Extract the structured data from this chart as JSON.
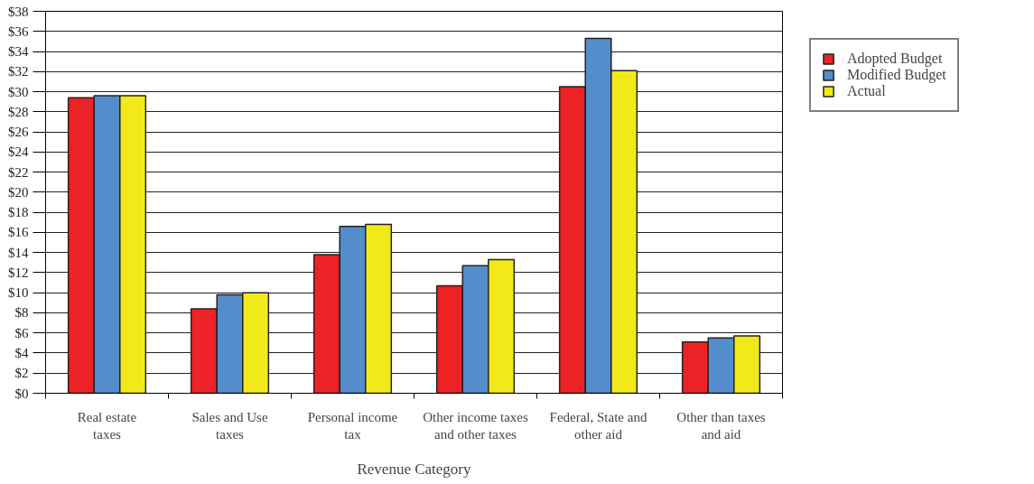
{
  "chart_data": {
    "type": "bar",
    "xlabel": "Revenue Category",
    "categories": [
      "Real estate\ntaxes",
      "Sales and Use\ntaxes",
      "Personal income\ntax",
      "Other income taxes\nand other taxes",
      "Federal, State and\nother aid",
      "Other than taxes\nand aid"
    ],
    "series": [
      {
        "name": "Adopted Budget",
        "color": "#ec2227",
        "values": [
          29.4,
          8.4,
          13.8,
          10.7,
          30.5,
          5.1
        ]
      },
      {
        "name": "Modified Budget",
        "color": "#548dcb",
        "values": [
          29.6,
          9.8,
          16.6,
          12.7,
          35.3,
          5.5
        ]
      },
      {
        "name": "Actual",
        "color": "#f2e91a",
        "values": [
          29.6,
          10.0,
          16.8,
          13.3,
          32.1,
          5.7
        ]
      }
    ],
    "ylim": [
      0,
      38
    ],
    "yticks": [
      {
        "value": 0,
        "label": "$0"
      },
      {
        "value": 2,
        "label": "$2"
      },
      {
        "value": 4,
        "label": "$4"
      },
      {
        "value": 6,
        "label": "$6"
      },
      {
        "value": 8,
        "label": "$8"
      },
      {
        "value": 10,
        "label": "$10"
      },
      {
        "value": 12,
        "label": "$12"
      },
      {
        "value": 14,
        "label": "$14"
      },
      {
        "value": 16,
        "label": "$16"
      },
      {
        "value": 18,
        "label": "$18"
      },
      {
        "value": 20,
        "label": "$20"
      },
      {
        "value": 22,
        "label": "$22"
      },
      {
        "value": 24,
        "label": "$24"
      },
      {
        "value": 26,
        "label": "$26"
      },
      {
        "value": 28,
        "label": "$28"
      },
      {
        "value": 30,
        "label": "$30"
      },
      {
        "value": 32,
        "label": "$32"
      },
      {
        "value": 34,
        "label": "$34"
      },
      {
        "value": 36,
        "label": "$36"
      },
      {
        "value": 38,
        "label": "$38"
      }
    ],
    "grid": "y",
    "legend": "top right"
  }
}
